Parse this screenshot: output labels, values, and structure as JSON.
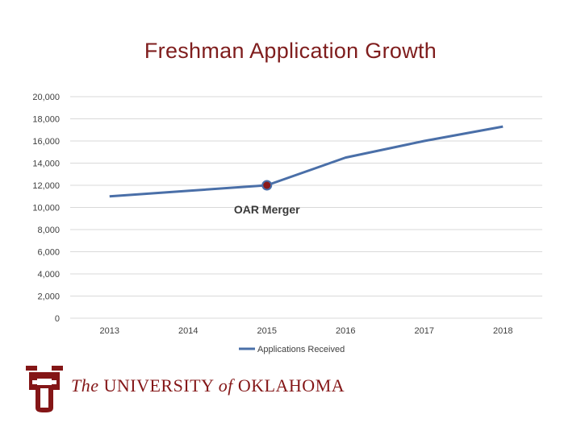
{
  "chart_data": {
    "type": "line",
    "title": "Freshman Application Growth",
    "categories": [
      "2013",
      "2014",
      "2015",
      "2016",
      "2017",
      "2018"
    ],
    "series": [
      {
        "name": "Applications Received",
        "values": [
          11000,
          11500,
          12000,
          14500,
          16000,
          17300
        ],
        "color": "#4a6fa8"
      }
    ],
    "ylim": [
      0,
      20000
    ],
    "yticks": [
      0,
      2000,
      4000,
      6000,
      8000,
      10000,
      12000,
      14000,
      16000,
      18000,
      20000
    ],
    "ytick_labels": [
      "0",
      "2,000",
      "4,000",
      "6,000",
      "8,000",
      "10,000",
      "12,000",
      "14,000",
      "16,000",
      "18,000",
      "20,000"
    ],
    "grid": true,
    "legend_position": "bottom",
    "annotations": [
      {
        "text": "OAR Merger",
        "x": "2015",
        "y": 12000,
        "marker_color": "#8b1a1a"
      }
    ]
  },
  "logo": {
    "mark_text": "OU",
    "wordmark_prefix": "The ",
    "wordmark_main": "UNIVERSITY ",
    "wordmark_of": "of",
    "wordmark_name": " OKLAHOMA",
    "color": "#841617"
  }
}
